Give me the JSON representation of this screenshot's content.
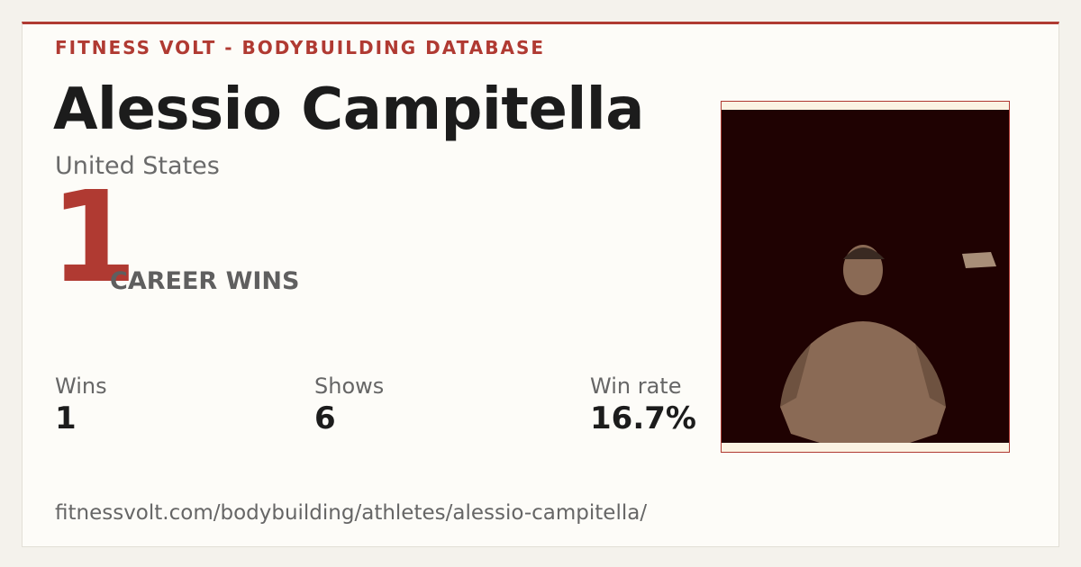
{
  "header": {
    "brand": "FITNESS VOLT - BODYBUILDING DATABASE"
  },
  "athlete": {
    "name": "Alessio Campitella",
    "country": "United States"
  },
  "headline": {
    "value": "1",
    "label": "CAREER WINS"
  },
  "stats": [
    {
      "label": "Wins",
      "value": "1"
    },
    {
      "label": "Shows",
      "value": "6"
    },
    {
      "label": "Win rate",
      "value": "16.7%"
    }
  ],
  "footer": {
    "url": "fitnessvolt.com/bodybuilding/athletes/alessio-campitella/"
  }
}
